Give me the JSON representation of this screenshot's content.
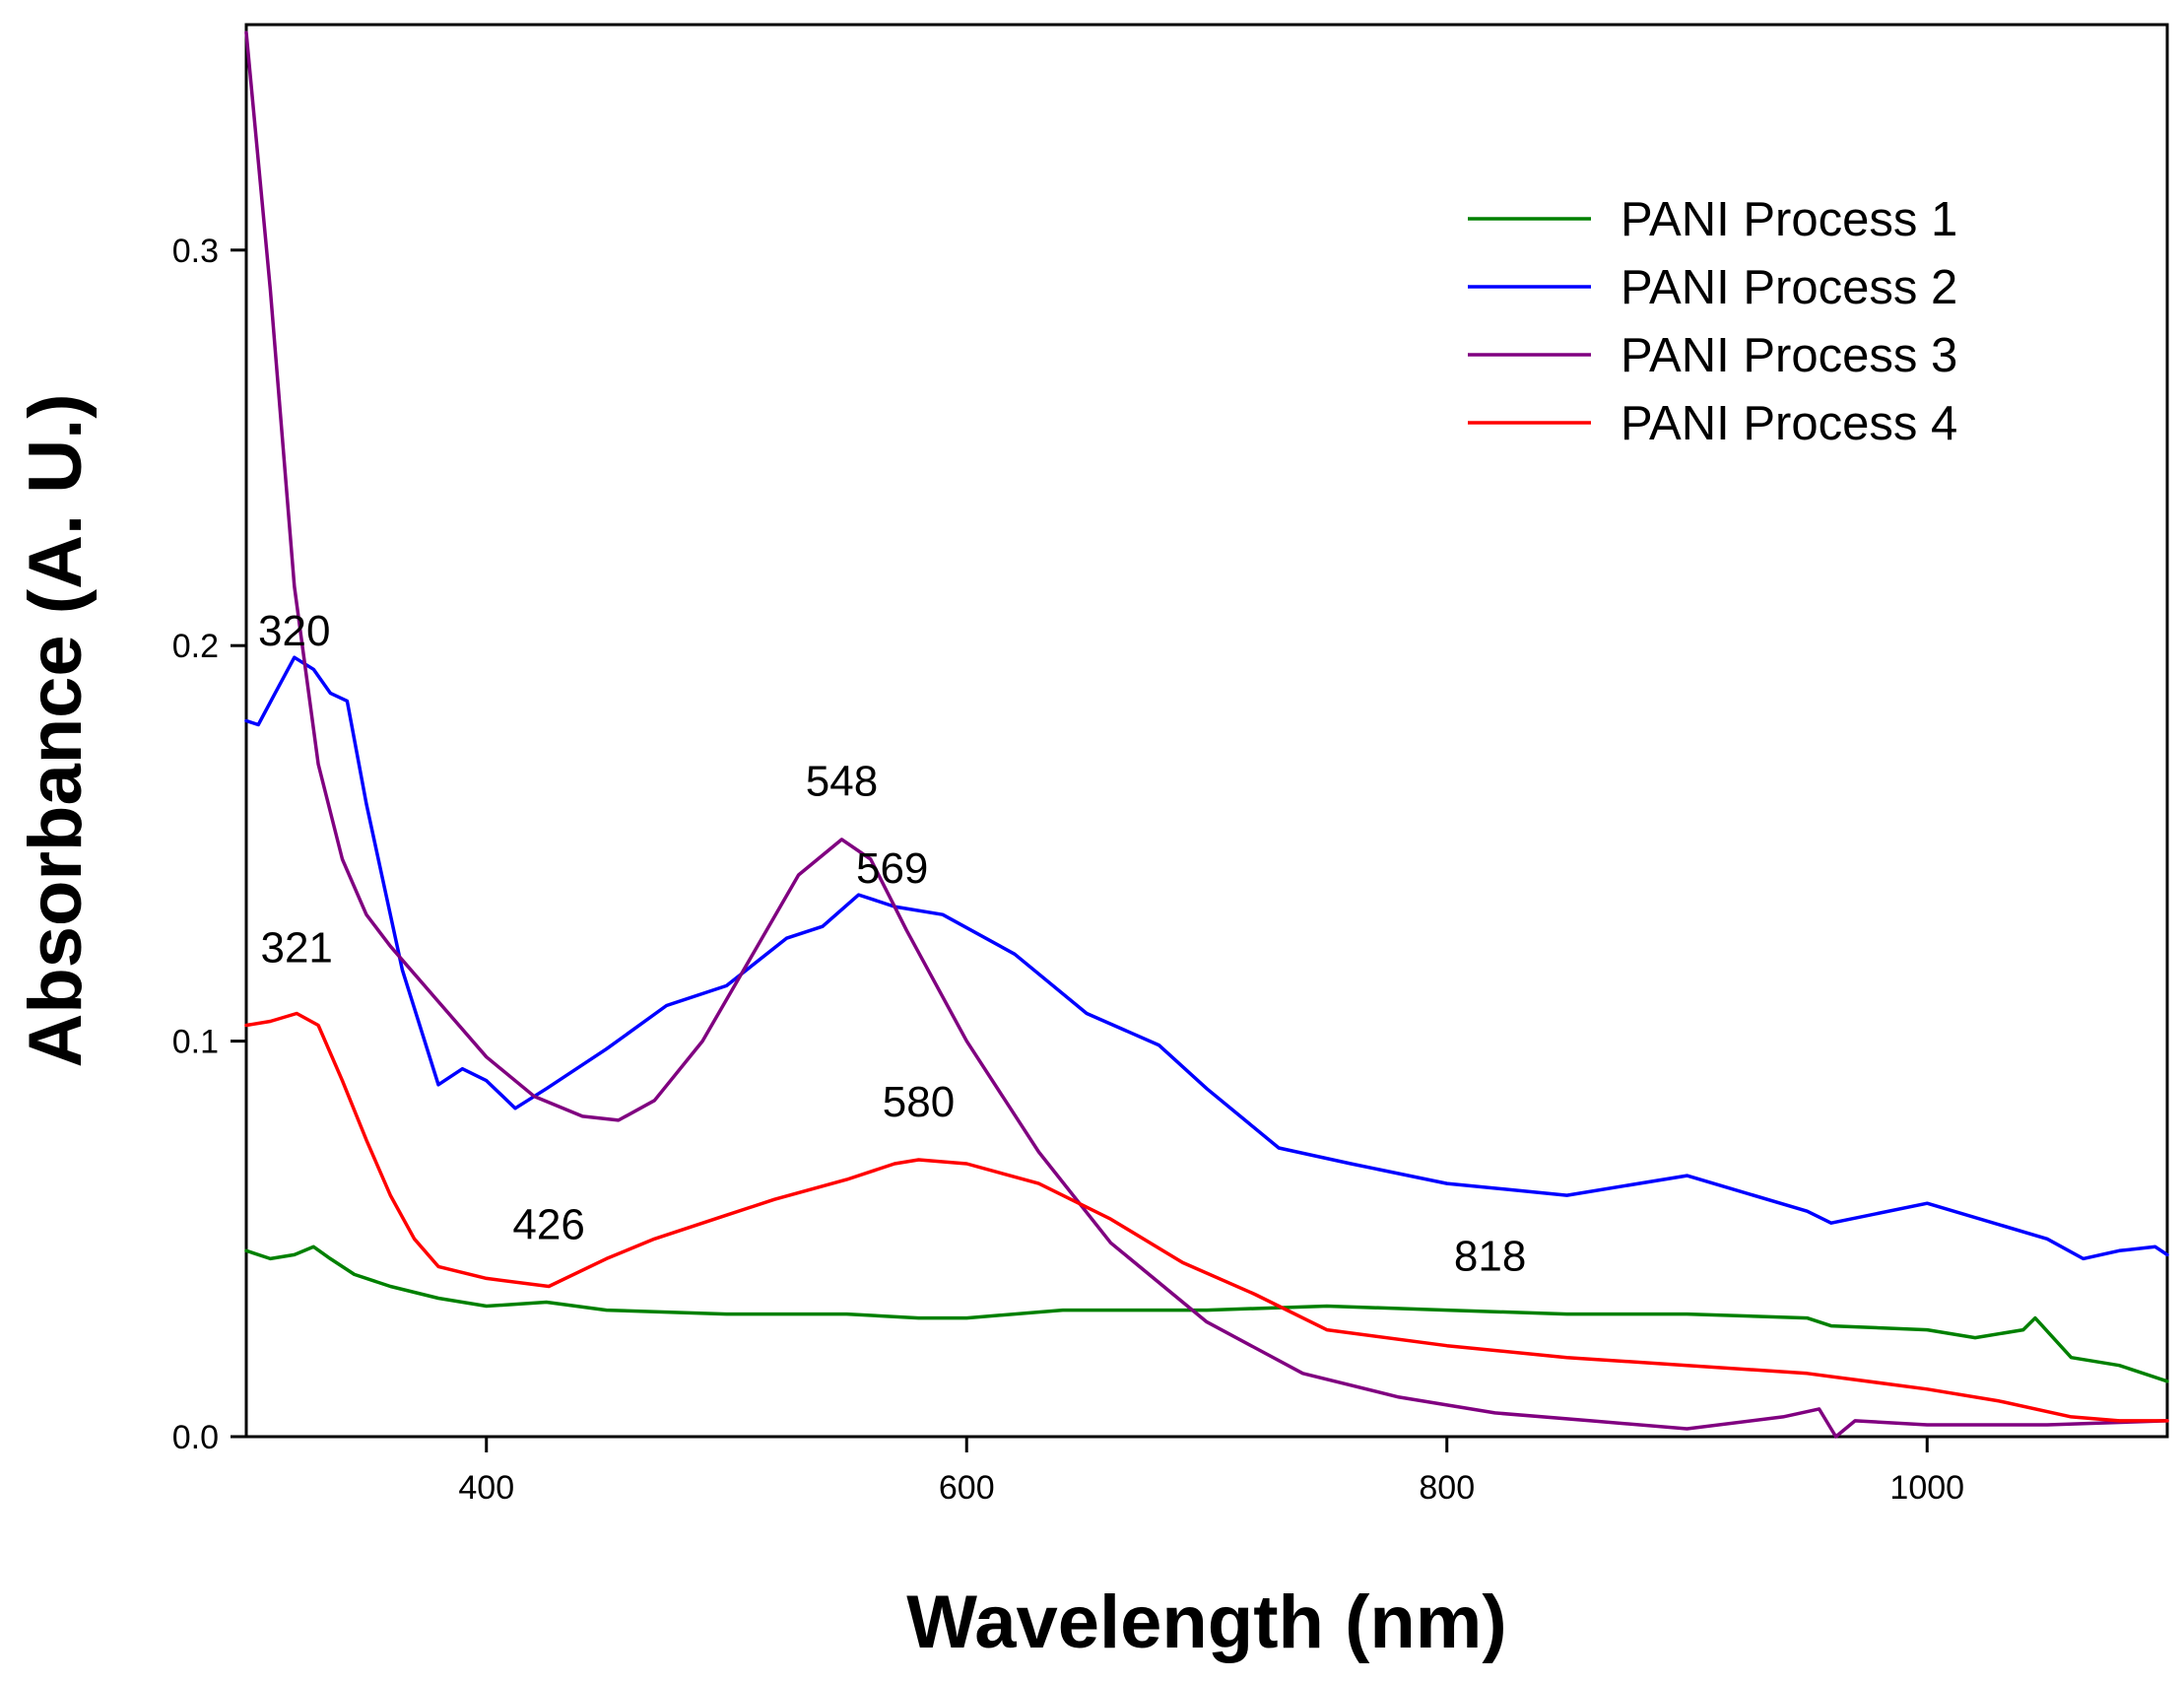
{
  "chart_data": {
    "type": "line",
    "title": "",
    "xlabel": "Wavelength (nm)",
    "ylabel": "Absorbance (A. U.)",
    "xlim": [
      300,
      1100
    ],
    "ylim": [
      0.0,
      0.357
    ],
    "xticks": [
      400,
      600,
      800,
      1000
    ],
    "xtick_labels": [
      "400",
      "600",
      "800",
      "1000"
    ],
    "yticks": [
      0.0,
      0.1,
      0.2,
      0.3
    ],
    "ytick_labels": [
      "0.0",
      "0.1",
      "0.2",
      "0.3"
    ],
    "grid": false,
    "legend_position": "top-right",
    "series": [
      {
        "name": "PANI Process 1",
        "color": "#008000",
        "x": [
          300,
          310,
          320,
          328,
          335,
          345,
          360,
          380,
          400,
          425,
          450,
          500,
          550,
          580,
          600,
          640,
          700,
          750,
          800,
          850,
          900,
          950,
          960,
          1000,
          1020,
          1040,
          1045,
          1060,
          1080,
          1100
        ],
        "y": [
          0.047,
          0.045,
          0.046,
          0.048,
          0.045,
          0.041,
          0.038,
          0.035,
          0.033,
          0.034,
          0.032,
          0.031,
          0.031,
          0.03,
          0.03,
          0.032,
          0.032,
          0.033,
          0.032,
          0.031,
          0.031,
          0.03,
          0.028,
          0.027,
          0.025,
          0.027,
          0.03,
          0.02,
          0.018,
          0.014
        ]
      },
      {
        "name": "PANI Process 2",
        "color": "#0000ff",
        "x": [
          300,
          305,
          312,
          320,
          328,
          335,
          342,
          350,
          365,
          380,
          390,
          400,
          412,
          425,
          450,
          475,
          500,
          525,
          540,
          555,
          570,
          590,
          620,
          650,
          680,
          700,
          730,
          760,
          800,
          850,
          900,
          950,
          960,
          1000,
          1050,
          1065,
          1080,
          1095,
          1100
        ],
        "y": [
          0.181,
          0.18,
          0.188,
          0.197,
          0.194,
          0.188,
          0.186,
          0.16,
          0.118,
          0.089,
          0.093,
          0.09,
          0.083,
          0.088,
          0.098,
          0.109,
          0.114,
          0.126,
          0.129,
          0.137,
          0.134,
          0.132,
          0.122,
          0.107,
          0.099,
          0.088,
          0.073,
          0.069,
          0.064,
          0.061,
          0.066,
          0.057,
          0.054,
          0.059,
          0.05,
          0.045,
          0.047,
          0.048,
          0.046
        ]
      },
      {
        "name": "PANI Process 3",
        "color": "#800080",
        "x": [
          300,
          310,
          320,
          330,
          340,
          350,
          360,
          380,
          400,
          420,
          440,
          455,
          470,
          490,
          510,
          530,
          548,
          560,
          575,
          600,
          630,
          660,
          700,
          740,
          780,
          820,
          860,
          900,
          940,
          955,
          962,
          970,
          1000,
          1050,
          1100
        ],
        "y": [
          0.355,
          0.29,
          0.215,
          0.17,
          0.146,
          0.132,
          0.124,
          0.11,
          0.096,
          0.086,
          0.081,
          0.08,
          0.085,
          0.1,
          0.121,
          0.142,
          0.151,
          0.146,
          0.128,
          0.1,
          0.072,
          0.049,
          0.029,
          0.016,
          0.01,
          0.006,
          0.004,
          0.002,
          0.005,
          0.007,
          0.0,
          0.004,
          0.003,
          0.003,
          0.004
        ]
      },
      {
        "name": "PANI Process 4",
        "color": "#ff0000",
        "x": [
          300,
          310,
          321,
          330,
          340,
          350,
          360,
          370,
          380,
          400,
          426,
          450,
          470,
          500,
          520,
          550,
          570,
          580,
          600,
          630,
          660,
          690,
          720,
          750,
          800,
          850,
          900,
          950,
          1000,
          1030,
          1060,
          1080,
          1100
        ],
        "y": [
          0.104,
          0.105,
          0.107,
          0.104,
          0.09,
          0.075,
          0.061,
          0.05,
          0.043,
          0.04,
          0.038,
          0.045,
          0.05,
          0.056,
          0.06,
          0.065,
          0.069,
          0.07,
          0.069,
          0.064,
          0.055,
          0.044,
          0.036,
          0.027,
          0.023,
          0.02,
          0.018,
          0.016,
          0.012,
          0.009,
          0.005,
          0.004,
          0.004
        ]
      }
    ],
    "annotations": [
      {
        "text": "320",
        "x": 320,
        "y": 0.2
      },
      {
        "text": "321",
        "x": 321,
        "y": 0.12
      },
      {
        "text": "548",
        "x": 548,
        "y": 0.162
      },
      {
        "text": "569",
        "x": 569,
        "y": 0.14
      },
      {
        "text": "580",
        "x": 580,
        "y": 0.081
      },
      {
        "text": "426",
        "x": 426,
        "y": 0.05
      },
      {
        "text": "818",
        "x": 818,
        "y": 0.042
      }
    ]
  }
}
